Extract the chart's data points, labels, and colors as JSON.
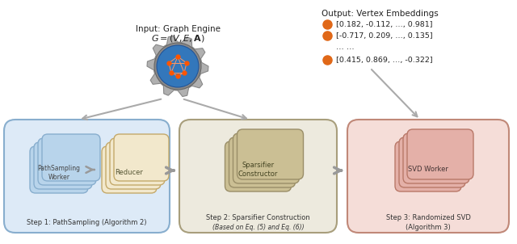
{
  "input_label": "Input: Graph Engine",
  "input_math": "$G = (V, E, \\mathbf{A})$",
  "output_label": "Output: Vertex Embeddings",
  "output_rows": [
    "[0.182, -0.112, …, 0.981]",
    "[-0.717, 0.209, …, 0.135]",
    "… …",
    "[0.415, 0.869, …, -0.322]"
  ],
  "step1_label": "Step 1: PathSampling (Algorithm 2)",
  "step2_label_line1": "Step 2: Sparsifier Construction",
  "step2_label_line2": "(Based on Eq. (5) and Eq. (6))",
  "step3_label_line1": "Step 3: Randomized SVD",
  "step3_label_line2": "(Algorithm 3)",
  "step1_worker_label": "PathSampling\nWorker",
  "step1_reducer_label": "Reducer",
  "step2_worker_label": "Sparsifier\nConstructor",
  "step3_worker_label": "SVD Worker",
  "bg_color": "#ffffff",
  "step1_box_fill": "#ddeaf7",
  "step1_box_edge": "#88aece",
  "step1_card_fill": "#b8d4eb",
  "step1_card_edge": "#88aece",
  "step1_reducer_fill": "#f2e8cc",
  "step1_reducer_edge": "#c4a96a",
  "step2_box_fill": "#edeade",
  "step2_box_edge": "#a89e7c",
  "step2_card_fill": "#cbbf94",
  "step2_card_edge": "#9a8e68",
  "step3_box_fill": "#f5ddd8",
  "step3_box_edge": "#c08878",
  "step3_card_fill": "#e4b0a8",
  "step3_card_edge": "#b87868",
  "arrow_color": "#999999",
  "dot_color": "#e06818",
  "gear_outer": "#aaaaaa",
  "gear_inner": "#4488bb"
}
